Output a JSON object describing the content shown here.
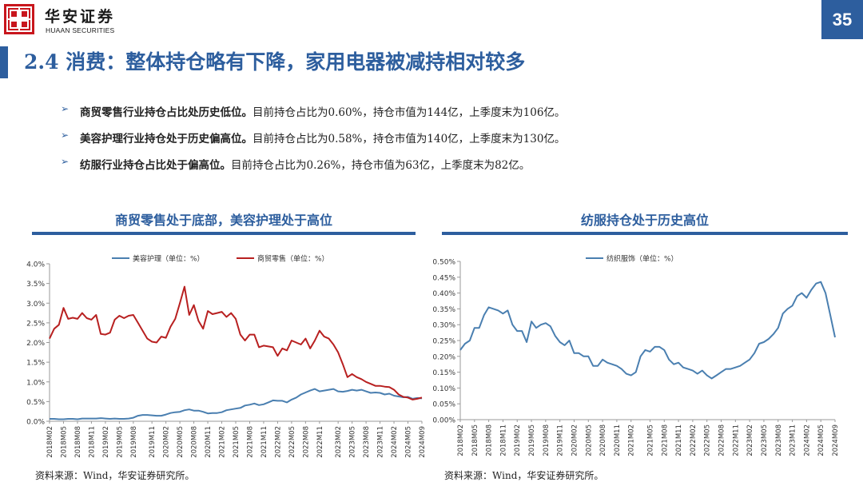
{
  "header": {
    "brand_cn": "华安证券",
    "brand_en": "HUAAN SECURITIES",
    "page_number": "35"
  },
  "title": "2.4 消费：整体持仓略有下降，家用电器被减持相对较多",
  "bullets": [
    {
      "bold": "商贸零售行业持仓占比处历史低位。",
      "text": "目前持仓占比为0.60%，持仓市值为144亿，上季度末为106亿。"
    },
    {
      "bold": "美容护理行业持仓处于历史偏高位。",
      "text": "目前持仓占比为0.58%，持仓市值为140亿，上季度末为130亿。"
    },
    {
      "bold": "纺服行业持仓占比处于偏高位。",
      "text": "目前持仓占比为0.26%，持仓市值为63亿，上季度末为82亿。"
    }
  ],
  "colors": {
    "brand_blue": "#2d5e9e",
    "series_blue": "#4a7fb0",
    "series_red": "#b82020"
  },
  "icons": {
    "bullet": "triangle-arrow-icon",
    "logo": "huaan-seal-logo"
  },
  "chart_data": [
    {
      "type": "line",
      "title": "商贸零售处于底部，美容护理处于高位",
      "source": "资料来源：Wind，华安证券研究所。",
      "ylim": [
        0,
        4.0
      ],
      "yticks": [
        "0.0%",
        "0.5%",
        "1.0%",
        "1.5%",
        "2.0%",
        "2.5%",
        "3.0%",
        "3.5%",
        "4.0%"
      ],
      "legend_position": "top",
      "grid": false,
      "xtick_labels": [
        "2018M02",
        "2018M05",
        "2018M08",
        "2018M11",
        "2019M02",
        "2019M05",
        "2019M08",
        "2019M11",
        "2020M02",
        "2020M05",
        "2020M08",
        "2020M11",
        "2021M02",
        "2021M05",
        "2021M08",
        "2021M11",
        "2022M02",
        "2022M05",
        "2022M08",
        "2022M11",
        "2023M02",
        "2023M05",
        "2023M08",
        "2023M11",
        "2024M02",
        "2024M05",
        "2024M09"
      ],
      "series": [
        {
          "name": "美容护理（单位：%）",
          "color": "#4a7fb0",
          "values": [
            0.06,
            0.06,
            0.05,
            0.05,
            0.06,
            0.06,
            0.05,
            0.07,
            0.07,
            0.07,
            0.07,
            0.08,
            0.07,
            0.06,
            0.07,
            0.06,
            0.06,
            0.07,
            0.09,
            0.14,
            0.16,
            0.16,
            0.15,
            0.14,
            0.14,
            0.17,
            0.21,
            0.23,
            0.24,
            0.28,
            0.3,
            0.27,
            0.27,
            0.24,
            0.2,
            0.21,
            0.21,
            0.23,
            0.28,
            0.3,
            0.32,
            0.34,
            0.4,
            0.42,
            0.45,
            0.41,
            0.43,
            0.48,
            0.53,
            0.52,
            0.52,
            0.48,
            0.55,
            0.6,
            0.68,
            0.73,
            0.78,
            0.82,
            0.76,
            0.78,
            0.8,
            0.82,
            0.76,
            0.75,
            0.77,
            0.8,
            0.78,
            0.8,
            0.76,
            0.72,
            0.73,
            0.72,
            0.68,
            0.7,
            0.65,
            0.63,
            0.61,
            0.62,
            0.57,
            0.59,
            0.58
          ]
        },
        {
          "name": "商贸零售（单位：%）",
          "color": "#b82020",
          "values": [
            2.1,
            2.35,
            2.45,
            2.88,
            2.6,
            2.63,
            2.6,
            2.75,
            2.62,
            2.58,
            2.7,
            2.22,
            2.2,
            2.25,
            2.58,
            2.68,
            2.62,
            2.68,
            2.7,
            2.5,
            2.3,
            2.1,
            2.02,
            2.0,
            2.15,
            2.12,
            2.4,
            2.6,
            3.0,
            3.42,
            2.7,
            2.95,
            2.55,
            2.35,
            2.8,
            2.72,
            2.75,
            2.78,
            2.65,
            2.75,
            2.6,
            2.2,
            2.05,
            2.2,
            2.2,
            1.88,
            1.92,
            1.9,
            1.88,
            1.66,
            1.85,
            1.8,
            2.05,
            2.0,
            1.95,
            2.1,
            1.85,
            2.05,
            2.3,
            2.15,
            2.1,
            1.95,
            1.75,
            1.45,
            1.12,
            1.2,
            1.12,
            1.07,
            1.0,
            0.95,
            0.9,
            0.9,
            0.88,
            0.87,
            0.8,
            0.68,
            0.62,
            0.6,
            0.55,
            0.57,
            0.6
          ]
        }
      ]
    },
    {
      "type": "line",
      "title": "纺服持仓处于历史高位",
      "source": "资料来源：Wind，华安证券研究所。",
      "ylim": [
        0,
        0.5
      ],
      "yticks": [
        "0.00%",
        "0.05%",
        "0.10%",
        "0.15%",
        "0.20%",
        "0.25%",
        "0.30%",
        "0.35%",
        "0.40%",
        "0.45%",
        "0.50%"
      ],
      "legend_position": "top",
      "grid": false,
      "xtick_labels": [
        "2018M02",
        "2018M05",
        "2018M08",
        "2018M11",
        "2019M02",
        "2019M05",
        "2019M08",
        "2019M11",
        "2020M02",
        "2020M05",
        "2020M08",
        "2020M11",
        "2021M02",
        "2021M05",
        "2021M08",
        "2021M11",
        "2022M02",
        "2022M05",
        "2022M08",
        "2022M11",
        "2023M02",
        "2023M05",
        "2023M08",
        "2023M11",
        "2024M02",
        "2024M05",
        "2024M09"
      ],
      "series": [
        {
          "name": "纺织服饰（单位：%）",
          "color": "#4a7fb0",
          "values": [
            0.22,
            0.24,
            0.25,
            0.29,
            0.29,
            0.33,
            0.355,
            0.35,
            0.345,
            0.335,
            0.345,
            0.3,
            0.28,
            0.28,
            0.245,
            0.31,
            0.29,
            0.3,
            0.305,
            0.295,
            0.265,
            0.245,
            0.235,
            0.25,
            0.21,
            0.21,
            0.2,
            0.2,
            0.17,
            0.17,
            0.19,
            0.18,
            0.175,
            0.17,
            0.16,
            0.145,
            0.14,
            0.15,
            0.2,
            0.22,
            0.215,
            0.23,
            0.23,
            0.22,
            0.19,
            0.175,
            0.18,
            0.165,
            0.16,
            0.155,
            0.145,
            0.155,
            0.14,
            0.13,
            0.14,
            0.15,
            0.16,
            0.16,
            0.165,
            0.17,
            0.18,
            0.19,
            0.21,
            0.24,
            0.245,
            0.255,
            0.27,
            0.29,
            0.335,
            0.35,
            0.36,
            0.39,
            0.4,
            0.385,
            0.41,
            0.43,
            0.435,
            0.4,
            0.33,
            0.26
          ]
        }
      ]
    }
  ]
}
